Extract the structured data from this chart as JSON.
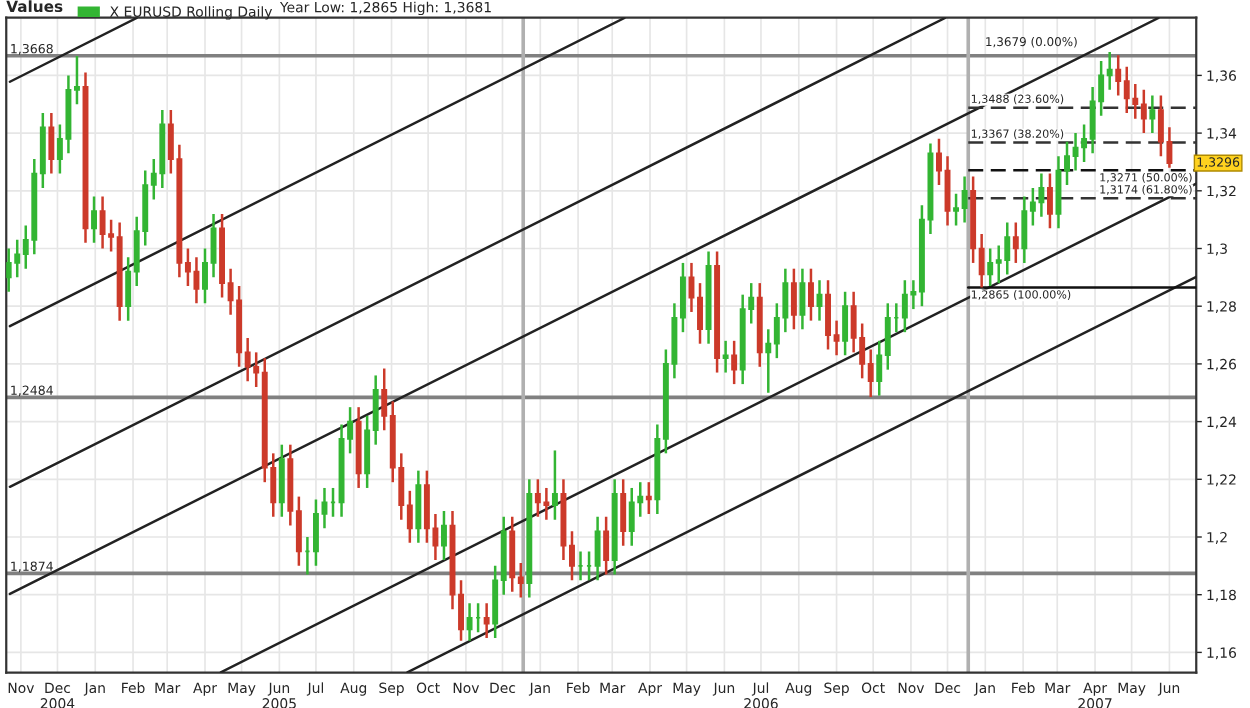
{
  "chart_data": {
    "type": "candlestick",
    "ylabel": "Values",
    "legend": "top left",
    "grid": true,
    "annotations": [
      "Year Low: 1,2865 High: 1,3681",
      {
        "text": "1,3679 (0.00%)",
        "x": "2007-01-01",
        "y": 1.3679
      },
      {
        "text": "1,3296",
        "x": "2007-06-15",
        "y": 1.3296
      }
    ],
    "xlim": [
      "2004-11-03",
      "2007-07-07"
    ],
    "ylim": [
      1.153,
      1.38
    ],
    "xticks": [
      {
        "value": "2004-11-15",
        "label": "Nov"
      },
      {
        "value": "2004-12-15",
        "label": "Dec\n2004"
      },
      {
        "value": "2005-01-15",
        "label": "Jan"
      },
      {
        "value": "2005-02-15",
        "label": "Feb"
      },
      {
        "value": "2005-03-15",
        "label": "Mar"
      },
      {
        "value": "2005-04-15",
        "label": "Apr"
      },
      {
        "value": "2005-05-15",
        "label": "May"
      },
      {
        "value": "2005-06-15",
        "label": "Jun\n2005"
      },
      {
        "value": "2005-07-15",
        "label": "Jul"
      },
      {
        "value": "2005-08-15",
        "label": "Aug"
      },
      {
        "value": "2005-09-15",
        "label": "Sep"
      },
      {
        "value": "2005-10-15",
        "label": "Oct"
      },
      {
        "value": "2005-11-15",
        "label": "Nov"
      },
      {
        "value": "2005-12-15",
        "label": "Dec"
      },
      {
        "value": "2006-01-15",
        "label": "Jan"
      },
      {
        "value": "2006-02-15",
        "label": "Feb"
      },
      {
        "value": "2006-03-15",
        "label": "Mar"
      },
      {
        "value": "2006-04-15",
        "label": "Apr"
      },
      {
        "value": "2006-05-15",
        "label": "May"
      },
      {
        "value": "2006-06-15",
        "label": "Jun"
      },
      {
        "value": "2006-07-15",
        "label": "Jul\n2006"
      },
      {
        "value": "2006-08-15",
        "label": "Aug"
      },
      {
        "value": "2006-09-15",
        "label": "Sep"
      },
      {
        "value": "2006-10-15",
        "label": "Oct"
      },
      {
        "value": "2006-11-15",
        "label": "Nov"
      },
      {
        "value": "2006-12-15",
        "label": "Dec"
      },
      {
        "value": "2007-01-15",
        "label": "Jan"
      },
      {
        "value": "2007-02-15",
        "label": "Feb"
      },
      {
        "value": "2007-03-15",
        "label": "Mar"
      },
      {
        "value": "2007-04-15",
        "label": "Apr\n2007"
      },
      {
        "value": "2007-05-15",
        "label": "May"
      },
      {
        "value": "2007-06-15",
        "label": "Jun"
      }
    ],
    "yticks": [
      {
        "value": 1.16,
        "label": "1,16"
      },
      {
        "value": 1.18,
        "label": "1,18"
      },
      {
        "value": 1.2,
        "label": "1,2"
      },
      {
        "value": 1.22,
        "label": "1,22"
      },
      {
        "value": 1.24,
        "label": "1,24"
      },
      {
        "value": 1.26,
        "label": "1,26"
      },
      {
        "value": 1.28,
        "label": "1,28"
      },
      {
        "value": 1.3,
        "label": "1,3"
      },
      {
        "value": 1.32,
        "label": "1,32"
      },
      {
        "value": 1.34,
        "label": "1,34"
      },
      {
        "value": 1.36,
        "label": "1,36"
      }
    ],
    "ref_lines": [
      {
        "axis": "y",
        "value": 1.3668,
        "label": "1,3668",
        "color": "#808080"
      },
      {
        "axis": "y",
        "value": 1.2484,
        "label": "1,2484",
        "color": "#808080"
      },
      {
        "axis": "y",
        "value": 1.1874,
        "label": "1,1874",
        "color": "#808080"
      },
      {
        "axis": "x",
        "value": "2006-01-01",
        "color": "#b0b0b0"
      },
      {
        "axis": "x",
        "value": "2007-01-01",
        "color": "#b0b0b0"
      }
    ],
    "series": [
      {
        "type": "line",
        "x": [
          "2004-11-06",
          "2005-02-18"
        ],
        "values": [
          1.3578,
          1.3799
        ],
        "color": "#222222",
        "line_style": "solid"
      },
      {
        "type": "line",
        "x": [
          "2004-11-06",
          "2006-03-25"
        ],
        "values": [
          1.2731,
          1.3799
        ],
        "color": "#222222",
        "line_style": "solid"
      },
      {
        "type": "line",
        "x": [
          "2004-11-06",
          "2006-12-13"
        ],
        "values": [
          1.2174,
          1.3799
        ],
        "color": "#222222",
        "line_style": "solid"
      },
      {
        "type": "line",
        "x": [
          "2004-11-06",
          "2007-06-06"
        ],
        "values": [
          1.1803,
          1.3799
        ],
        "color": "#222222",
        "line_style": "solid"
      },
      {
        "type": "line",
        "x": [
          "2005-04-28",
          "2007-07-07"
        ],
        "values": [
          1.1531,
          1.3225
        ],
        "color": "#222222",
        "line_style": "solid"
      },
      {
        "type": "line",
        "x": [
          "2005-09-28",
          "2007-07-07"
        ],
        "values": [
          1.1531,
          1.2902
        ],
        "color": "#222222",
        "line_style": "solid"
      },
      {
        "type": "line",
        "name": "1,3488 (23.60%)",
        "x": [
          "2007-01-01",
          "2007-07-07"
        ],
        "values": [
          1.3488,
          1.3488
        ],
        "color": "#333333",
        "line_style": "dashed"
      },
      {
        "type": "line",
        "name": "1,3367 (38.20%)",
        "x": [
          "2007-01-01",
          "2007-07-07"
        ],
        "values": [
          1.3367,
          1.3367
        ],
        "color": "#333333",
        "line_style": "dashed"
      },
      {
        "type": "line",
        "name": "1,3271 (50.00%)",
        "x": [
          "2007-01-01",
          "2007-07-07"
        ],
        "values": [
          1.3271,
          1.3271
        ],
        "color": "#111111",
        "line_style": "dashed"
      },
      {
        "type": "line",
        "name": "1,3174 (61.80%)",
        "x": [
          "2007-01-01",
          "2007-07-07"
        ],
        "values": [
          1.3174,
          1.3174
        ],
        "color": "#333333",
        "line_style": "dashed"
      },
      {
        "type": "line",
        "name": "1,2865 (100.00%)",
        "x": [
          "2007-01-01",
          "2007-07-07"
        ],
        "values": [
          1.2865,
          1.2865
        ],
        "color": "#111111",
        "line_style": "solid"
      },
      {
        "name": "X EURUSD Rolling Daily",
        "x": [
          "2004-11-05",
          "2004-11-12",
          "2004-11-19",
          "2004-11-26",
          "2004-12-03",
          "2004-12-10",
          "2004-12-17",
          "2004-12-24",
          "2004-12-31",
          "2005-01-07",
          "2005-01-14",
          "2005-01-21",
          "2005-01-28",
          "2005-02-04",
          "2005-02-11",
          "2005-02-18",
          "2005-02-25",
          "2005-03-04",
          "2005-03-11",
          "2005-03-18",
          "2005-03-25",
          "2005-04-01",
          "2005-04-08",
          "2005-04-15",
          "2005-04-22",
          "2005-04-29",
          "2005-05-06",
          "2005-05-13",
          "2005-05-20",
          "2005-05-27",
          "2005-06-03",
          "2005-06-10",
          "2005-06-17",
          "2005-06-24",
          "2005-07-01",
          "2005-07-08",
          "2005-07-15",
          "2005-07-22",
          "2005-07-29",
          "2005-08-05",
          "2005-08-12",
          "2005-08-19",
          "2005-08-26",
          "2005-09-02",
          "2005-09-09",
          "2005-09-16",
          "2005-09-23",
          "2005-09-30",
          "2005-10-07",
          "2005-10-14",
          "2005-10-21",
          "2005-10-28",
          "2005-11-04",
          "2005-11-11",
          "2005-11-18",
          "2005-11-25",
          "2005-12-02",
          "2005-12-09",
          "2005-12-16",
          "2005-12-23",
          "2005-12-30",
          "2006-01-06",
          "2006-01-13",
          "2006-01-20",
          "2006-01-27",
          "2006-02-03",
          "2006-02-10",
          "2006-02-17",
          "2006-02-24",
          "2006-03-03",
          "2006-03-10",
          "2006-03-17",
          "2006-03-24",
          "2006-03-31",
          "2006-04-07",
          "2006-04-14",
          "2006-04-21",
          "2006-04-28",
          "2006-05-05",
          "2006-05-12",
          "2006-05-19",
          "2006-05-26",
          "2006-06-02",
          "2006-06-09",
          "2006-06-16",
          "2006-06-23",
          "2006-06-30",
          "2006-07-07",
          "2006-07-14",
          "2006-07-21",
          "2006-07-28",
          "2006-08-04",
          "2006-08-11",
          "2006-08-18",
          "2006-08-25",
          "2006-09-01",
          "2006-09-08",
          "2006-09-15",
          "2006-09-22",
          "2006-09-29",
          "2006-10-06",
          "2006-10-13",
          "2006-10-20",
          "2006-10-27",
          "2006-11-03",
          "2006-11-10",
          "2006-11-17",
          "2006-11-24",
          "2006-12-01",
          "2006-12-08",
          "2006-12-15",
          "2006-12-22",
          "2006-12-29",
          "2007-01-05",
          "2007-01-12",
          "2007-01-19",
          "2007-01-26",
          "2007-02-02",
          "2007-02-09",
          "2007-02-16",
          "2007-02-23",
          "2007-03-02",
          "2007-03-09",
          "2007-03-16",
          "2007-03-23",
          "2007-03-30",
          "2007-04-06",
          "2007-04-13",
          "2007-04-20",
          "2007-04-27",
          "2007-05-04",
          "2007-05-11",
          "2007-05-18",
          "2007-05-25",
          "2007-06-01",
          "2007-06-08",
          "2007-06-15"
        ],
        "ohlc": [
          [
            1.29,
            1.3,
            1.285,
            1.295
          ],
          [
            1.295,
            1.303,
            1.29,
            1.298
          ],
          [
            1.298,
            1.308,
            1.293,
            1.303
          ],
          [
            1.303,
            1.331,
            1.298,
            1.326
          ],
          [
            1.326,
            1.347,
            1.321,
            1.342
          ],
          [
            1.342,
            1.347,
            1.326,
            1.331
          ],
          [
            1.331,
            1.343,
            1.326,
            1.338
          ],
          [
            1.338,
            1.36,
            1.333,
            1.355
          ],
          [
            1.355,
            1.3667,
            1.35,
            1.356
          ],
          [
            1.356,
            1.361,
            1.302,
            1.307
          ],
          [
            1.307,
            1.318,
            1.302,
            1.313
          ],
          [
            1.313,
            1.318,
            1.3,
            1.305
          ],
          [
            1.305,
            1.31,
            1.299,
            1.304
          ],
          [
            1.304,
            1.309,
            1.275,
            1.28
          ],
          [
            1.28,
            1.297,
            1.275,
            1.292
          ],
          [
            1.292,
            1.311,
            1.287,
            1.306
          ],
          [
            1.306,
            1.327,
            1.301,
            1.322
          ],
          [
            1.322,
            1.331,
            1.317,
            1.326
          ],
          [
            1.326,
            1.348,
            1.321,
            1.343
          ],
          [
            1.343,
            1.348,
            1.326,
            1.331
          ],
          [
            1.331,
            1.336,
            1.29,
            1.295
          ],
          [
            1.295,
            1.3,
            1.287,
            1.292
          ],
          [
            1.292,
            1.297,
            1.281,
            1.286
          ],
          [
            1.286,
            1.3,
            1.281,
            1.295
          ],
          [
            1.295,
            1.312,
            1.29,
            1.307
          ],
          [
            1.307,
            1.312,
            1.283,
            1.288
          ],
          [
            1.288,
            1.293,
            1.277,
            1.282
          ],
          [
            1.282,
            1.287,
            1.259,
            1.264
          ],
          [
            1.264,
            1.269,
            1.254,
            1.259
          ],
          [
            1.259,
            1.264,
            1.252,
            1.257
          ],
          [
            1.257,
            1.262,
            1.219,
            1.224
          ],
          [
            1.224,
            1.229,
            1.207,
            1.212
          ],
          [
            1.212,
            1.232,
            1.207,
            1.227
          ],
          [
            1.227,
            1.232,
            1.204,
            1.209
          ],
          [
            1.209,
            1.214,
            1.19,
            1.195
          ],
          [
            1.195,
            1.2,
            1.187,
            1.195
          ],
          [
            1.195,
            1.213,
            1.19,
            1.208
          ],
          [
            1.208,
            1.217,
            1.203,
            1.212
          ],
          [
            1.212,
            1.217,
            1.207,
            1.212
          ],
          [
            1.212,
            1.239,
            1.207,
            1.234
          ],
          [
            1.234,
            1.245,
            1.229,
            1.24
          ],
          [
            1.24,
            1.245,
            1.217,
            1.222
          ],
          [
            1.222,
            1.242,
            1.217,
            1.237
          ],
          [
            1.237,
            1.256,
            1.232,
            1.251
          ],
          [
            1.251,
            1.2584,
            1.237,
            1.242
          ],
          [
            1.242,
            1.247,
            1.219,
            1.224
          ],
          [
            1.224,
            1.229,
            1.206,
            1.211
          ],
          [
            1.211,
            1.216,
            1.198,
            1.203
          ],
          [
            1.203,
            1.223,
            1.198,
            1.218
          ],
          [
            1.218,
            1.223,
            1.198,
            1.203
          ],
          [
            1.203,
            1.208,
            1.192,
            1.197
          ],
          [
            1.197,
            1.209,
            1.192,
            1.204
          ],
          [
            1.204,
            1.209,
            1.175,
            1.18
          ],
          [
            1.18,
            1.185,
            1.164,
            1.168
          ],
          [
            1.168,
            1.177,
            1.164,
            1.172
          ],
          [
            1.172,
            1.177,
            1.167,
            1.172
          ],
          [
            1.172,
            1.177,
            1.165,
            1.17
          ],
          [
            1.17,
            1.19,
            1.165,
            1.185
          ],
          [
            1.185,
            1.207,
            1.18,
            1.202
          ],
          [
            1.202,
            1.207,
            1.181,
            1.186
          ],
          [
            1.186,
            1.191,
            1.179,
            1.184
          ],
          [
            1.184,
            1.22,
            1.179,
            1.215
          ],
          [
            1.215,
            1.22,
            1.207,
            1.212
          ],
          [
            1.212,
            1.217,
            1.206,
            1.211
          ],
          [
            1.211,
            1.23,
            1.206,
            1.215
          ],
          [
            1.215,
            1.22,
            1.192,
            1.197
          ],
          [
            1.197,
            1.202,
            1.185,
            1.19
          ],
          [
            1.19,
            1.195,
            1.185,
            1.19
          ],
          [
            1.19,
            1.195,
            1.185,
            1.19
          ],
          [
            1.19,
            1.207,
            1.185,
            1.202
          ],
          [
            1.202,
            1.207,
            1.187,
            1.192
          ],
          [
            1.192,
            1.22,
            1.187,
            1.215
          ],
          [
            1.215,
            1.22,
            1.197,
            1.202
          ],
          [
            1.202,
            1.217,
            1.197,
            1.212
          ],
          [
            1.212,
            1.219,
            1.207,
            1.214
          ],
          [
            1.214,
            1.219,
            1.208,
            1.213
          ],
          [
            1.213,
            1.239,
            1.208,
            1.234
          ],
          [
            1.234,
            1.265,
            1.229,
            1.26
          ],
          [
            1.26,
            1.281,
            1.255,
            1.276
          ],
          [
            1.276,
            1.295,
            1.271,
            1.29
          ],
          [
            1.29,
            1.295,
            1.278,
            1.283
          ],
          [
            1.283,
            1.288,
            1.267,
            1.272
          ],
          [
            1.272,
            1.299,
            1.267,
            1.294
          ],
          [
            1.294,
            1.299,
            1.257,
            1.262
          ],
          [
            1.262,
            1.268,
            1.257,
            1.263
          ],
          [
            1.263,
            1.268,
            1.253,
            1.258
          ],
          [
            1.258,
            1.284,
            1.253,
            1.279
          ],
          [
            1.279,
            1.288,
            1.274,
            1.283
          ],
          [
            1.283,
            1.288,
            1.259,
            1.264
          ],
          [
            1.264,
            1.272,
            1.25,
            1.267
          ],
          [
            1.267,
            1.281,
            1.262,
            1.276
          ],
          [
            1.276,
            1.293,
            1.271,
            1.288
          ],
          [
            1.288,
            1.293,
            1.272,
            1.277
          ],
          [
            1.277,
            1.293,
            1.272,
            1.288
          ],
          [
            1.288,
            1.293,
            1.275,
            1.28
          ],
          [
            1.28,
            1.289,
            1.275,
            1.284
          ],
          [
            1.284,
            1.289,
            1.265,
            1.27
          ],
          [
            1.27,
            1.275,
            1.263,
            1.268
          ],
          [
            1.268,
            1.285,
            1.263,
            1.28
          ],
          [
            1.28,
            1.285,
            1.264,
            1.269
          ],
          [
            1.269,
            1.274,
            1.255,
            1.26
          ],
          [
            1.26,
            1.265,
            1.2485,
            1.254
          ],
          [
            1.254,
            1.268,
            1.249,
            1.263
          ],
          [
            1.263,
            1.281,
            1.258,
            1.276
          ],
          [
            1.276,
            1.281,
            1.271,
            1.276
          ],
          [
            1.276,
            1.289,
            1.271,
            1.284
          ],
          [
            1.284,
            1.289,
            1.279,
            1.285
          ],
          [
            1.285,
            1.315,
            1.28,
            1.31
          ],
          [
            1.31,
            1.3364,
            1.305,
            1.333
          ],
          [
            1.333,
            1.338,
            1.322,
            1.327
          ],
          [
            1.327,
            1.332,
            1.308,
            1.313
          ],
          [
            1.313,
            1.319,
            1.308,
            1.314
          ],
          [
            1.314,
            1.325,
            1.309,
            1.32
          ],
          [
            1.32,
            1.325,
            1.295,
            1.3
          ],
          [
            1.3,
            1.305,
            1.2865,
            1.291
          ],
          [
            1.291,
            1.3,
            1.287,
            1.295
          ],
          [
            1.295,
            1.301,
            1.288,
            1.296
          ],
          [
            1.296,
            1.309,
            1.291,
            1.304
          ],
          [
            1.304,
            1.309,
            1.295,
            1.3
          ],
          [
            1.3,
            1.318,
            1.295,
            1.313
          ],
          [
            1.313,
            1.321,
            1.308,
            1.316
          ],
          [
            1.316,
            1.326,
            1.311,
            1.321
          ],
          [
            1.321,
            1.326,
            1.307,
            1.312
          ],
          [
            1.312,
            1.332,
            1.307,
            1.327
          ],
          [
            1.327,
            1.337,
            1.322,
            1.332
          ],
          [
            1.332,
            1.34,
            1.327,
            1.335
          ],
          [
            1.335,
            1.343,
            1.33,
            1.338
          ],
          [
            1.338,
            1.356,
            1.333,
            1.351
          ],
          [
            1.351,
            1.365,
            1.346,
            1.36
          ],
          [
            1.36,
            1.3681,
            1.355,
            1.362
          ],
          [
            1.362,
            1.367,
            1.353,
            1.358
          ],
          [
            1.358,
            1.363,
            1.347,
            1.352
          ],
          [
            1.352,
            1.357,
            1.345,
            1.35
          ],
          [
            1.35,
            1.355,
            1.34,
            1.345
          ],
          [
            1.345,
            1.353,
            1.34,
            1.348
          ],
          [
            1.348,
            1.353,
            1.332,
            1.337
          ],
          [
            1.337,
            1.342,
            1.328,
            1.3296
          ]
        ],
        "colors": [
          "#33b533",
          "#33b533",
          "#33b533",
          "#33b533",
          "#33b533",
          "#cc3a2a",
          "#33b533",
          "#33b533",
          "#33b533",
          "#cc3a2a",
          "#33b533",
          "#cc3a2a",
          "#cc3a2a",
          "#cc3a2a",
          "#33b533",
          "#33b533",
          "#33b533",
          "#33b533",
          "#33b533",
          "#cc3a2a",
          "#cc3a2a",
          "#cc3a2a",
          "#cc3a2a",
          "#33b533",
          "#33b533",
          "#cc3a2a",
          "#cc3a2a",
          "#cc3a2a",
          "#cc3a2a",
          "#cc3a2a",
          "#cc3a2a",
          "#cc3a2a",
          "#33b533",
          "#cc3a2a",
          "#cc3a2a",
          "#33b533",
          "#33b533",
          "#33b533",
          "#33b533",
          "#33b533",
          "#33b533",
          "#cc3a2a",
          "#33b533",
          "#33b533",
          "#cc3a2a",
          "#cc3a2a",
          "#cc3a2a",
          "#cc3a2a",
          "#33b533",
          "#cc3a2a",
          "#cc3a2a",
          "#33b533",
          "#cc3a2a",
          "#cc3a2a",
          "#33b533",
          "#33b533",
          "#cc3a2a",
          "#33b533",
          "#33b533",
          "#cc3a2a",
          "#cc3a2a",
          "#33b533",
          "#cc3a2a",
          "#cc3a2a",
          "#33b533",
          "#cc3a2a",
          "#cc3a2a",
          "#33b533",
          "#33b533",
          "#33b533",
          "#cc3a2a",
          "#33b533",
          "#cc3a2a",
          "#33b533",
          "#33b533",
          "#cc3a2a",
          "#33b533",
          "#33b533",
          "#33b533",
          "#33b533",
          "#cc3a2a",
          "#cc3a2a",
          "#33b533",
          "#cc3a2a",
          "#33b533",
          "#cc3a2a",
          "#33b533",
          "#33b533",
          "#cc3a2a",
          "#33b533",
          "#33b533",
          "#33b533",
          "#cc3a2a",
          "#33b533",
          "#cc3a2a",
          "#33b533",
          "#cc3a2a",
          "#cc3a2a",
          "#33b533",
          "#cc3a2a",
          "#cc3a2a",
          "#cc3a2a",
          "#33b533",
          "#33b533",
          "#33b533",
          "#33b533",
          "#33b533",
          "#33b533",
          "#33b533",
          "#cc3a2a",
          "#cc3a2a",
          "#33b533",
          "#33b533",
          "#cc3a2a",
          "#cc3a2a",
          "#33b533",
          "#33b533",
          "#33b533",
          "#cc3a2a",
          "#33b533",
          "#33b533",
          "#33b533",
          "#cc3a2a",
          "#33b533",
          "#33b533",
          "#33b533",
          "#33b533",
          "#33b533",
          "#33b533",
          "#33b533",
          "#cc3a2a",
          "#cc3a2a",
          "#cc3a2a",
          "#cc3a2a",
          "#33b533",
          "#cc3a2a",
          "#cc3a2a"
        ]
      }
    ]
  }
}
